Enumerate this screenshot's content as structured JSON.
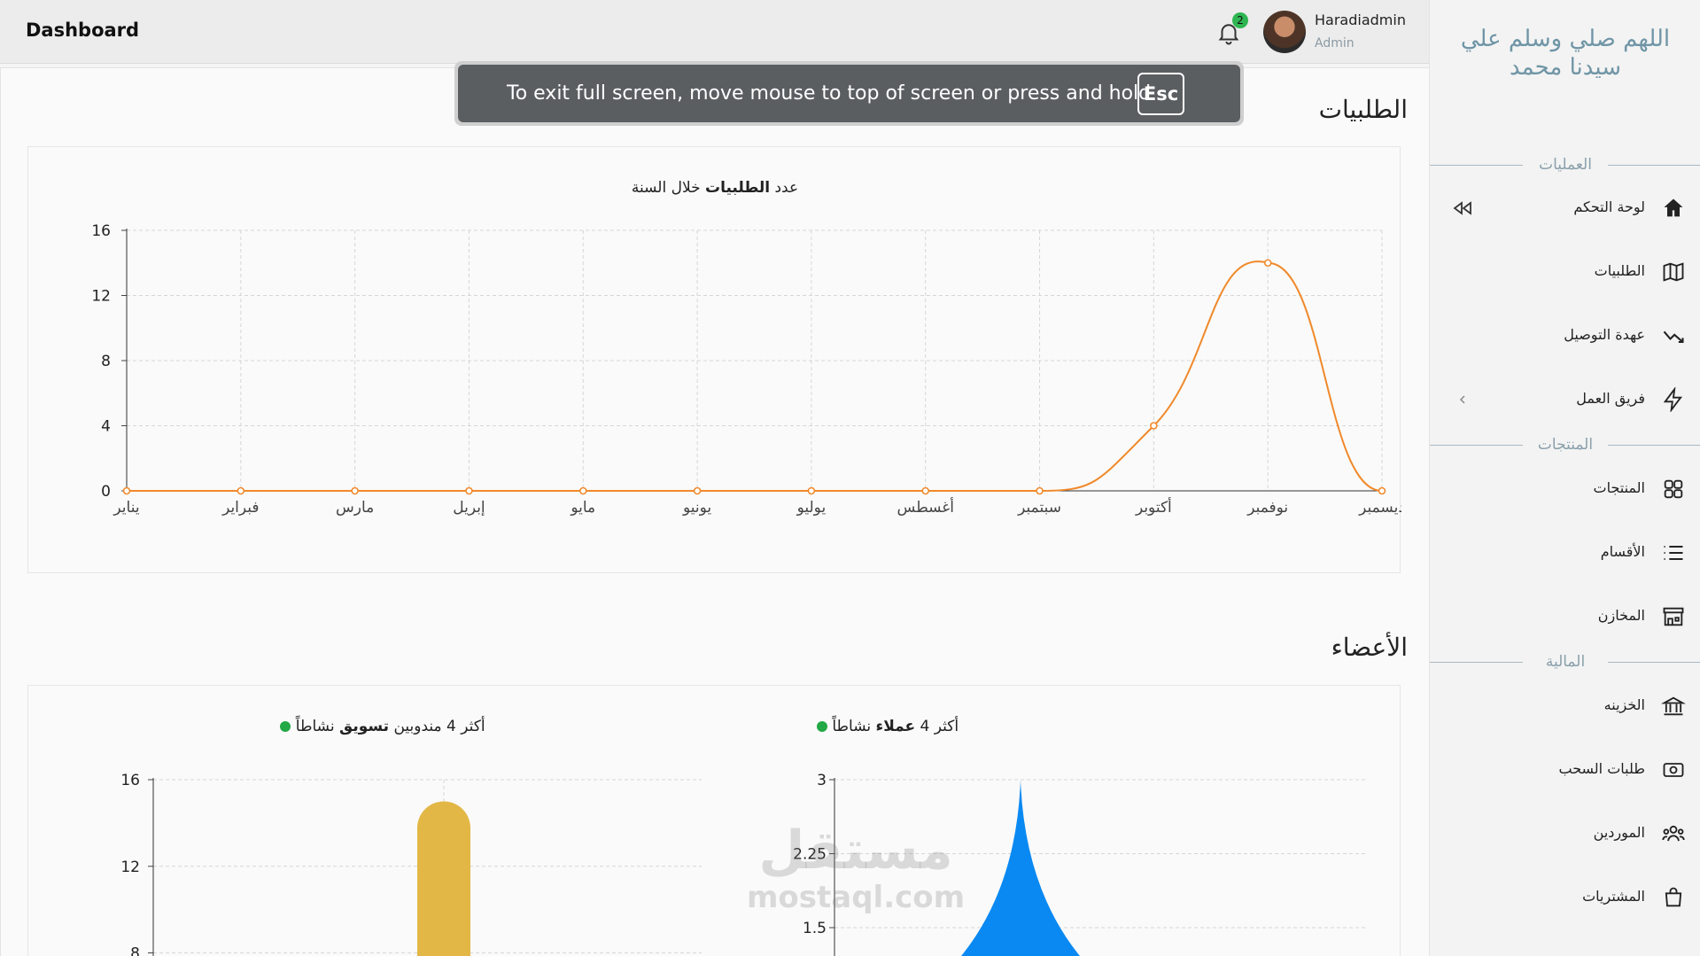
{
  "header": {
    "title": "Dashboard",
    "notification_count": "2",
    "user_name": "Haradiadmin",
    "user_role": "Admin"
  },
  "toast": {
    "text": "To exit full screen, move mouse to top of screen or press and hold",
    "key": "Esc"
  },
  "sidebar": {
    "brand_line1": "اللهم صلي وسلم علي",
    "brand_line2": "سيدنا محمد",
    "sections": {
      "operations": "العمليات",
      "products": "المنتجات",
      "finance": "المالية"
    },
    "items": [
      {
        "label": "لوحة التحكم",
        "icon": "home-icon"
      },
      {
        "label": "الطلبيات",
        "icon": "map-icon"
      },
      {
        "label": "عهدة التوصيل",
        "icon": "trend-down-icon"
      },
      {
        "label": "فريق العمل",
        "icon": "lightning-icon"
      },
      {
        "label": "المنتجات",
        "icon": "grid-icon"
      },
      {
        "label": "الأقسام",
        "icon": "list-icon"
      },
      {
        "label": "المخازن",
        "icon": "store-icon"
      },
      {
        "label": "الخزينه",
        "icon": "bank-icon"
      },
      {
        "label": "طلبات السحب",
        "icon": "cash-icon"
      },
      {
        "label": "الموردين",
        "icon": "users-icon"
      },
      {
        "label": "المشتريات",
        "icon": "bag-icon"
      }
    ]
  },
  "main": {
    "orders_title": "الطلبيات",
    "members_title": "الأعضاء",
    "orders_chart_title_pre": "عدد",
    "orders_chart_title_bold": "الطلبيات",
    "orders_chart_title_post": "خلال السنة",
    "clients_chart_title_pre": "أكثر 4",
    "clients_chart_title_bold": "عملاء",
    "clients_chart_title_post": "نشاطاً",
    "marketers_chart_title_pre": "أكثر 4 مندوبين",
    "marketers_chart_title_bold": "تسويق",
    "marketers_chart_title_post": "نشاطاً"
  },
  "watermark": {
    "arabic": "مستقل",
    "latin": "mostaql.com"
  },
  "chart_data": [
    {
      "type": "line",
      "title": "عدد الطلبيات خلال السنة",
      "categories": [
        "يناير",
        "فبراير",
        "مارس",
        "إبريل",
        "مايو",
        "يونيو",
        "يوليو",
        "أغسطس",
        "سبتمبر",
        "أكتوبر",
        "نوفمبر",
        "ديسمبر"
      ],
      "values": [
        0,
        0,
        0,
        0,
        0,
        0,
        0,
        0,
        0,
        4,
        14,
        0
      ],
      "ylim": [
        0,
        16
      ],
      "yticks": [
        0,
        4,
        8,
        12,
        16
      ],
      "color": "#f0892b",
      "grid": true
    },
    {
      "type": "bar",
      "title": "أكثر 4 عملاء نشاطاً",
      "values": [
        3
      ],
      "ylim": [
        0,
        3
      ],
      "yticks": [
        1.5,
        2.25,
        3
      ],
      "color": "#0a89f2"
    },
    {
      "type": "bar",
      "title": "أكثر 4 مندوبين تسويق نشاطاً",
      "values": [
        15
      ],
      "ylim": [
        0,
        16
      ],
      "yticks": [
        8,
        12,
        16
      ],
      "color": "#e2b746"
    }
  ]
}
